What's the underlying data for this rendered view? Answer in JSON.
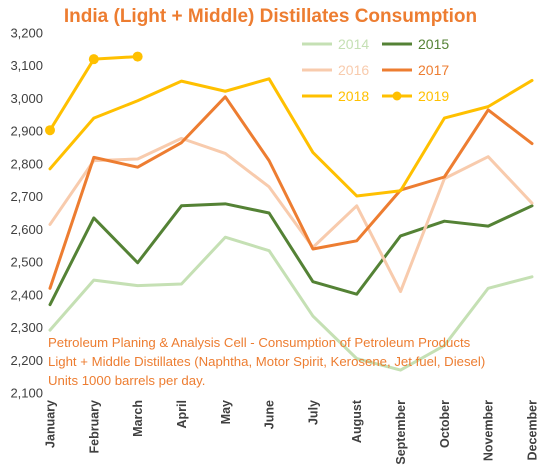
{
  "chart_data": {
    "type": "line",
    "title": "India (Light + Middle) Distillates Consumption",
    "categories": [
      "January",
      "February",
      "March",
      "April",
      "May",
      "June",
      "July",
      "August",
      "September",
      "October",
      "November",
      "December"
    ],
    "ylim": [
      2100,
      3200
    ],
    "yticks": [
      "2,100",
      "2,200",
      "2,300",
      "2,400",
      "2,500",
      "2,600",
      "2,700",
      "2,800",
      "2,900",
      "3,000",
      "3,100",
      "3,200"
    ],
    "grid": false,
    "legend_position": "top-right",
    "notes": [
      "Petroleum Planing & Analysis Cell - Consumption of Petroleum Products",
      "Light + Middle Distillates (Naphtha, Motor Spirit, Kerosene, Jet fuel, Diesel)",
      "Units 1000 barrels per day."
    ],
    "series": [
      {
        "name": "2014",
        "color": "#c5e0b4",
        "values": [
          2292,
          2445,
          2428,
          2433,
          2576,
          2535,
          2335,
          2205,
          2170,
          2245,
          2420,
          2455
        ]
      },
      {
        "name": "2015",
        "color": "#548235",
        "values": [
          2370,
          2635,
          2498,
          2672,
          2678,
          2650,
          2440,
          2402,
          2580,
          2625,
          2610,
          2672
        ]
      },
      {
        "name": "2016",
        "color": "#f8cbad",
        "values": [
          2615,
          2810,
          2815,
          2878,
          2832,
          2730,
          2545,
          2672,
          2410,
          2755,
          2822,
          2680
        ]
      },
      {
        "name": "2017",
        "color": "#ed7d31",
        "values": [
          2420,
          2820,
          2790,
          2865,
          3005,
          2810,
          2540,
          2565,
          2720,
          2760,
          2965,
          2862
        ]
      },
      {
        "name": "2018",
        "color": "#ffc000",
        "values": [
          2785,
          2940,
          2993,
          3053,
          3022,
          3060,
          2835,
          2702,
          2718,
          2940,
          2975,
          3055
        ]
      },
      {
        "name": "2019",
        "color": "#ffc000",
        "marker": "circle",
        "values": [
          2903,
          3120,
          3128,
          null,
          null,
          null,
          null,
          null,
          null,
          null,
          null,
          null
        ]
      }
    ]
  }
}
